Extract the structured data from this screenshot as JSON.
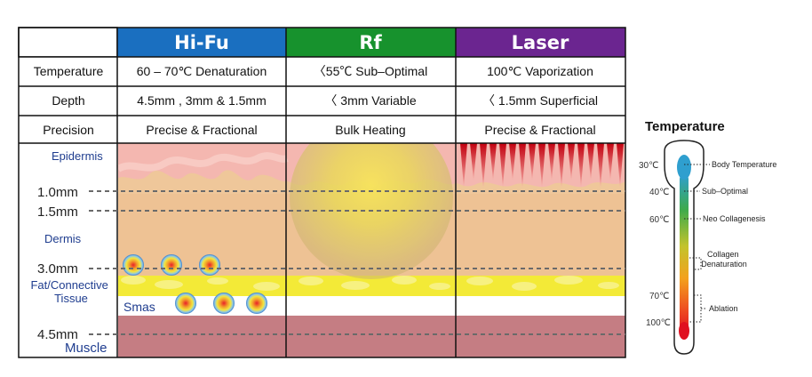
{
  "table": {
    "columns": [
      {
        "name": "Hi-Fu",
        "color": "#1a6fc0"
      },
      {
        "name": "Rf",
        "color": "#17922d"
      },
      {
        "name": "Laser",
        "color": "#6b2590"
      }
    ],
    "rows": [
      {
        "label": "Temperature",
        "values": [
          "60 – 70℃  Denaturation",
          "〈55℃  Sub–Optimal",
          "100℃  Vaporization"
        ]
      },
      {
        "label": "Depth",
        "values": [
          "4.5mm , 3mm & 1.5mm",
          "〈 3mm Variable",
          "〈 1.5mm Superficial"
        ]
      },
      {
        "label": "Precision",
        "values": [
          "Precise & Fractional",
          "Bulk Heating",
          "Precise & Fractional"
        ]
      }
    ]
  },
  "layers": {
    "epidermis": "Epidermis",
    "dermis": "Dermis",
    "fat": "Fat/Connective Tissue",
    "smas": "Smas",
    "muscle": "Muscle"
  },
  "depth_marks": [
    "1.0mm",
    "1.5mm",
    "3.0mm",
    "4.5mm"
  ],
  "colors": {
    "epidermis": "#f4b7b0",
    "dermis": "#efc79a",
    "fat": "#f3ea37",
    "muscle": "#c57d83"
  },
  "thermometer": {
    "title": "Temperature",
    "degrees": [
      "30℃",
      "40℃",
      "60℃",
      "70℃",
      "100℃"
    ],
    "notes": [
      "Body Temperature",
      "Sub–Optimal",
      "Neo Collagenesis",
      "Collagen Denaturation",
      "Ablation"
    ]
  }
}
